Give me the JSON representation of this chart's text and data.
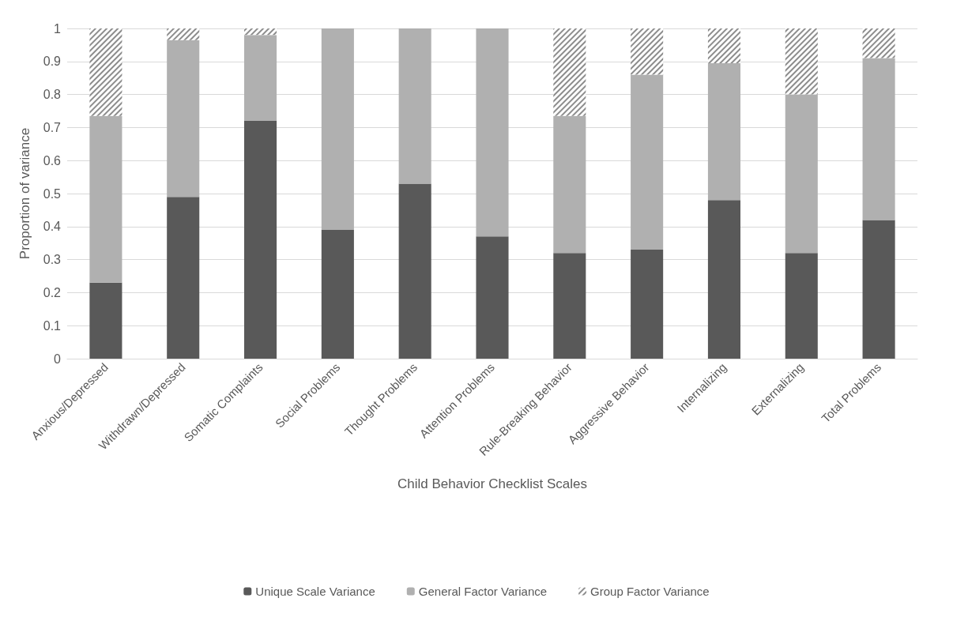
{
  "chart_data": {
    "type": "bar",
    "stacked": true,
    "xlabel": "Child Behavior Checklist Scales",
    "ylabel": "Proportion of variance",
    "categories": [
      "Anxious/Depressed",
      "Withdrawn/Depressed",
      "Somatic Complaints",
      "Social Problems",
      "Thought Problems",
      "Attention Problems",
      "Rule-Breaking Behavior",
      "Aggressive Behavior",
      "Internalizing",
      "Externalizing",
      "Total Problems"
    ],
    "series": [
      {
        "name": "Unique Scale Variance",
        "color": "#595959",
        "values": [
          0.23,
          0.49,
          0.72,
          0.39,
          0.53,
          0.37,
          0.32,
          0.33,
          0.48,
          0.32,
          0.42
        ]
      },
      {
        "name": "General Factor Variance",
        "color": "#b0b0b0",
        "values": [
          0.505,
          0.475,
          0.26,
          0.61,
          0.47,
          0.63,
          0.415,
          0.53,
          0.415,
          0.48,
          0.49
        ]
      },
      {
        "name": "Group Factor Variance",
        "color": "#8c8c8c",
        "values": [
          0.265,
          0.035,
          0.02,
          0,
          0,
          0,
          0.265,
          0.14,
          0.105,
          0.2,
          0.09
        ]
      }
    ],
    "ylim": [
      0,
      1
    ],
    "yticks": [
      0,
      0.1,
      0.2,
      0.3,
      0.4,
      0.5,
      0.6,
      0.7,
      0.8,
      0.9,
      1
    ],
    "grid": "y",
    "legend": "bottom"
  }
}
